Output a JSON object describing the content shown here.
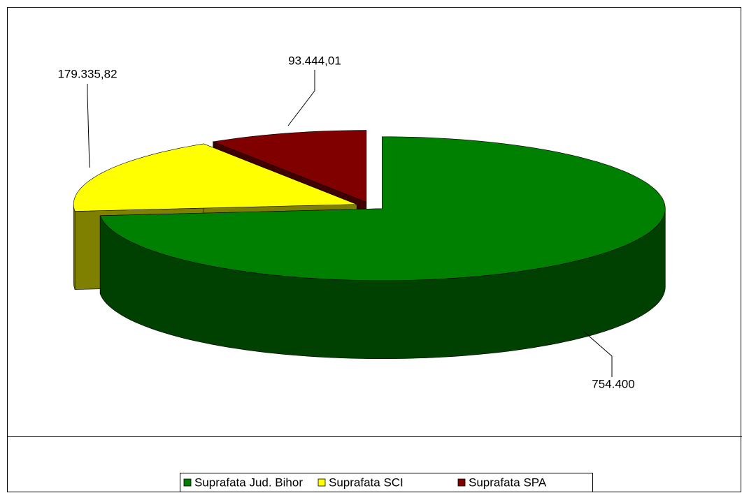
{
  "chart_data": {
    "type": "pie3d",
    "categories": [
      "Suprafata Jud. Bihor",
      "Suprafata SCI",
      "Suprafata SPA"
    ],
    "values": [
      754400,
      179335.82,
      93444.01
    ],
    "value_labels": [
      "754.400",
      "179.335,82",
      "93.444,01"
    ],
    "colors": [
      "#008000",
      "#ffff00",
      "#800000"
    ],
    "side_colors": [
      "#004000",
      "#808000",
      "#400000"
    ],
    "legend": "bottom"
  }
}
